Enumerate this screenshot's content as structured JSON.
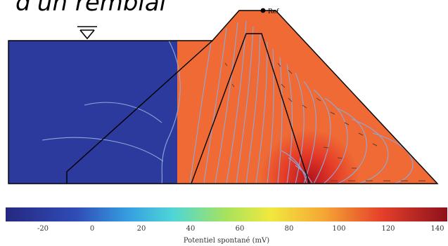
{
  "header": {
    "title_fragment": "d'un remblai"
  },
  "figure": {
    "reference_label": "Ref",
    "colorbar": {
      "label": "Potentiel spontané (mV)",
      "ticks": [
        "-20",
        "0",
        "20",
        "40",
        "60",
        "80",
        "100",
        "120",
        "140"
      ],
      "range": [
        -35,
        145
      ],
      "colormap": [
        "#2a2f8f",
        "#3a5fc4",
        "#3cb0e8",
        "#55d6c6",
        "#b8e05a",
        "#f2e640",
        "#f4a536",
        "#e8402a",
        "#9a1420"
      ]
    },
    "colors": {
      "background_field": "#2b3a9c",
      "contour": "#8fa8d8",
      "outline": "#000000"
    }
  }
}
